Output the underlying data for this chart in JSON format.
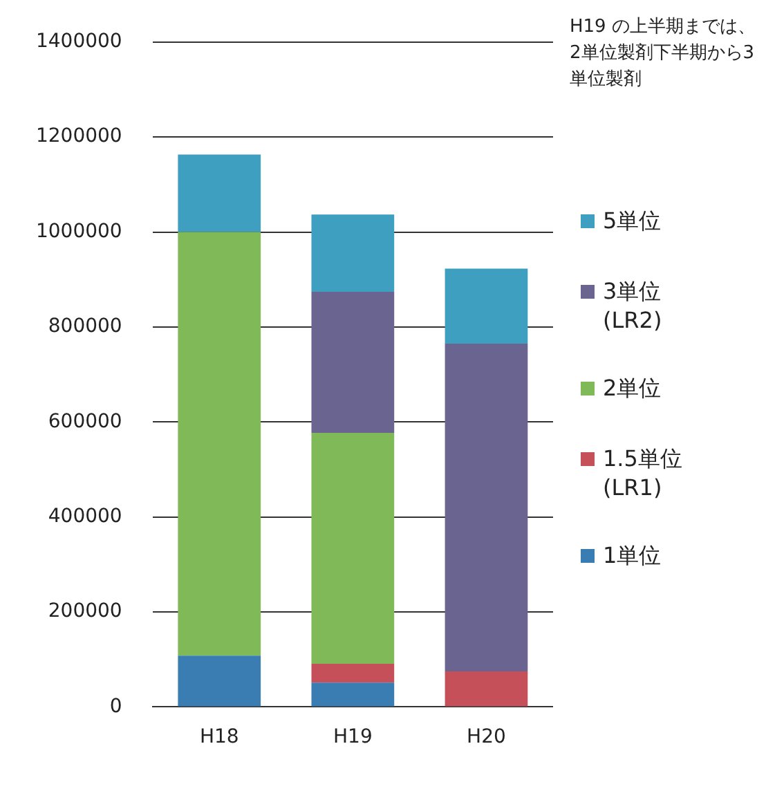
{
  "chart_data": {
    "type": "bar",
    "stacked": true,
    "categories": [
      "H18",
      "H19",
      "H20"
    ],
    "series": [
      {
        "name": "1単位",
        "color": "#3a7db3",
        "values": [
          108000,
          51000,
          null
        ]
      },
      {
        "name": "1.5単位 (LR1)",
        "color": "#c5505a",
        "values": [
          null,
          40000,
          75000
        ]
      },
      {
        "name": "2単位",
        "color": "#7fb958",
        "values": [
          892000,
          486000,
          null
        ]
      },
      {
        "name": "3単位 (LR2)",
        "color": "#6a6590",
        "values": [
          null,
          297000,
          690000
        ]
      },
      {
        "name": "5単位",
        "color": "#3e9fc0",
        "values": [
          163000,
          163000,
          158000
        ]
      }
    ],
    "ylim": [
      0,
      1400000
    ],
    "yticks": [
      0,
      200000,
      400000,
      600000,
      800000,
      1000000,
      1200000,
      1400000
    ],
    "grid": "y",
    "legend": "right",
    "annotations": [
      "H19 の上半期までは、2単位製剤下半期から3単位製剤"
    ]
  }
}
